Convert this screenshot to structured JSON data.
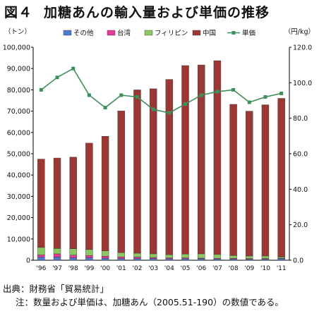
{
  "title": {
    "figure": "図４",
    "text": "加糖あんの輸入量および単価の推移"
  },
  "notes": {
    "source_label": "出典：",
    "source_text": "財務省「貿易統計」",
    "note_label": "注：",
    "note_text": "数量および単価は、加糖あん（2005.51-190）の数値である。"
  },
  "colors": {
    "sonota": "#4f7ac8",
    "taiwan": "#e8389a",
    "philippines": "#8cc862",
    "china": "#9c3834",
    "unit_price": "#3f8f5a",
    "axis": "#000000"
  },
  "chart_data": {
    "type": "bar",
    "stacked": true,
    "categories": [
      "'96",
      "'97",
      "'98",
      "'99",
      "'00",
      "'01",
      "'02",
      "'03",
      "'04",
      "'05",
      "'06",
      "'07",
      "'08",
      "'09",
      "'10",
      "'11"
    ],
    "y_left": {
      "unit_label": "（トン）",
      "ylim": [
        0,
        100000
      ],
      "ticks": [
        "0",
        "10,000",
        "20,000",
        "30,000",
        "40,000",
        "50,000",
        "60,000",
        "70,000",
        "80,000",
        "90,000",
        "100,000"
      ]
    },
    "y_right": {
      "unit_label": "（円/kg）",
      "ylim": [
        0,
        120
      ],
      "ticks": [
        "0.0",
        "20.0",
        "40.0",
        "60.0",
        "80.0",
        "100.0",
        "120.0"
      ]
    },
    "series": [
      {
        "name": "その他",
        "key": "sonota",
        "values": [
          1500,
          1500,
          1200,
          1200,
          1000,
          800,
          800,
          800,
          700,
          700,
          700,
          600,
          600,
          500,
          500,
          700
        ]
      },
      {
        "name": "台湾",
        "key": "taiwan",
        "values": [
          1000,
          1500,
          1200,
          1000,
          900,
          800,
          700,
          500,
          400,
          400,
          300,
          300,
          300,
          300,
          300,
          200
        ]
      },
      {
        "name": "フィリピン",
        "key": "philippines",
        "values": [
          3500,
          2500,
          3000,
          2800,
          2500,
          2000,
          1800,
          1700,
          1500,
          1800,
          2000,
          1800,
          1300,
          1200,
          1200,
          600
        ]
      },
      {
        "name": "中国",
        "key": "china",
        "values": [
          41500,
          42500,
          43000,
          50000,
          53800,
          66500,
          76700,
          77500,
          82300,
          88500,
          88700,
          91000,
          71000,
          68000,
          71000,
          74500
        ]
      }
    ],
    "line_series": {
      "name": "単価",
      "axis": "right",
      "values": [
        96,
        103,
        108,
        93,
        86,
        93,
        92,
        85,
        83,
        88,
        93,
        95,
        96,
        89,
        92,
        94
      ]
    },
    "legend": [
      "その他",
      "台湾",
      "フィリピン",
      "中国",
      "単価"
    ],
    "legend_position": "top"
  }
}
